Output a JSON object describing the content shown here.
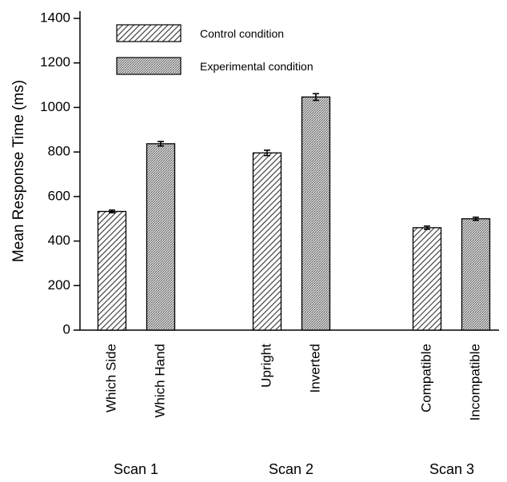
{
  "chart_data": {
    "type": "bar",
    "ylabel": "Mean Response Time (ms)",
    "ylim": [
      0,
      1400
    ],
    "yticks": [
      0,
      200,
      400,
      600,
      800,
      1000,
      1200,
      1400
    ],
    "grid": false,
    "legend_position": "top-left",
    "series": [
      {
        "name": "Control condition",
        "pattern": "diagonal-hatch",
        "color": "#888888"
      },
      {
        "name": "Experimental condition",
        "pattern": "stipple",
        "color": "#b0b0b0"
      }
    ],
    "bars": [
      {
        "category": "Which Side",
        "group": "Scan 1",
        "series": 0,
        "value": 533,
        "error": 6
      },
      {
        "category": "Which Hand",
        "group": "Scan 1",
        "series": 1,
        "value": 837,
        "error": 10
      },
      {
        "category": "Upright",
        "group": "Scan 2",
        "series": 0,
        "value": 796,
        "error": 12
      },
      {
        "category": "Inverted",
        "group": "Scan 2",
        "series": 1,
        "value": 1047,
        "error": 15
      },
      {
        "category": "Compatible",
        "group": "Scan 3",
        "series": 0,
        "value": 460,
        "error": 7
      },
      {
        "category": "Incompatible",
        "group": "Scan 3",
        "series": 1,
        "value": 500,
        "error": 7
      }
    ],
    "groups": [
      "Scan 1",
      "Scan 2",
      "Scan 3"
    ]
  }
}
